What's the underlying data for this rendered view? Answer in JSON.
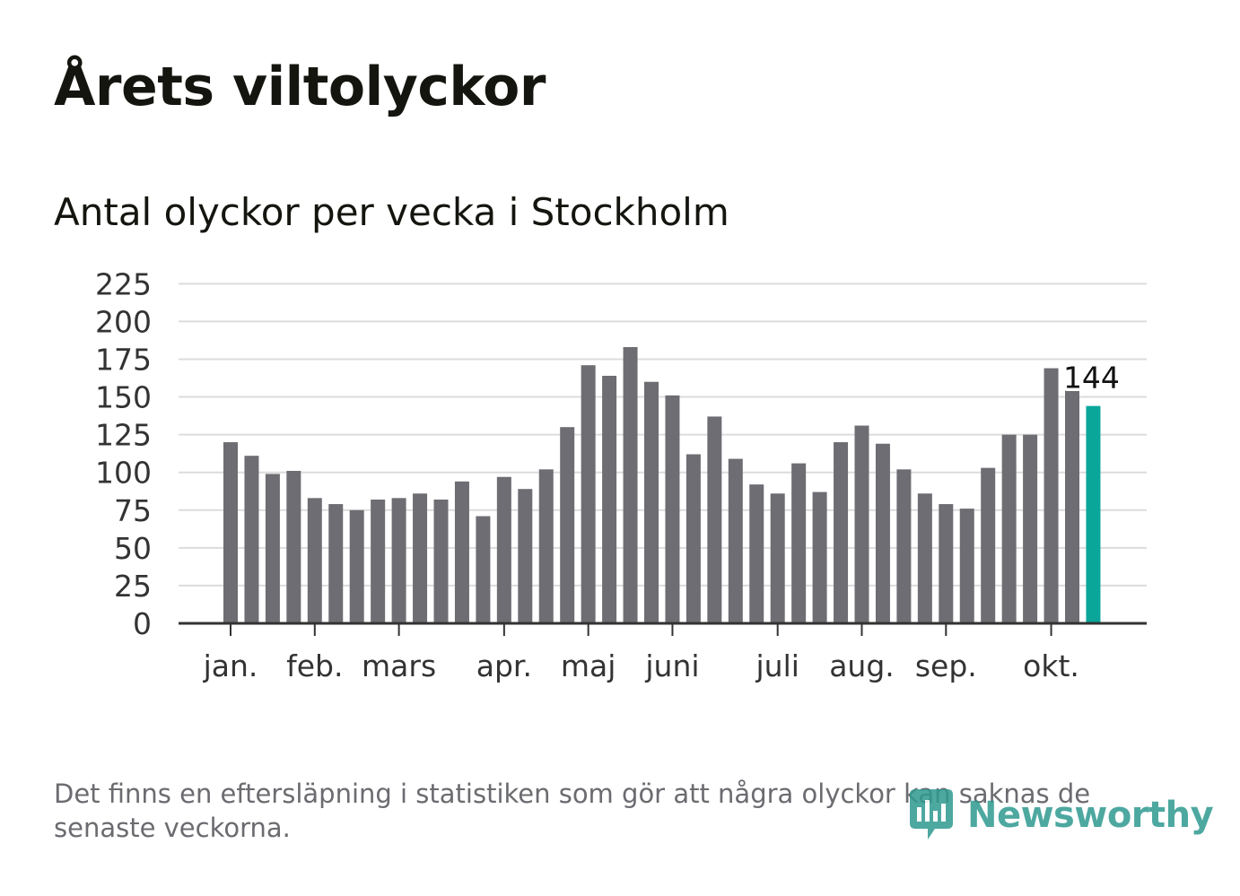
{
  "title": "Årets viltolyckor",
  "subtitle": "Antal olyckor per vecka i Stockholm",
  "footnote": "Det finns en eftersläpning i statistiken som gör att några olyckor kan saknas de senaste veckorna.",
  "logo": {
    "text": "Newsworthy",
    "icon": "newsworthy-logo-icon"
  },
  "colors": {
    "bar": "#6e6d73",
    "highlight": "#0aa69a",
    "grid": "#dcdcdc",
    "axis": "#333333"
  },
  "chart_data": {
    "type": "bar",
    "ylim": [
      0,
      225
    ],
    "yticks": [
      "0",
      "25",
      "50",
      "75",
      "100",
      "125",
      "150",
      "175",
      "200",
      "225"
    ],
    "values": [
      120,
      111,
      99,
      101,
      83,
      79,
      75,
      82,
      83,
      86,
      82,
      94,
      71,
      97,
      89,
      102,
      130,
      171,
      164,
      183,
      160,
      151,
      112,
      137,
      109,
      92,
      86,
      106,
      87,
      120,
      131,
      119,
      102,
      86,
      79,
      76,
      103,
      125,
      125,
      169,
      155,
      144
    ],
    "highlight_index": 41,
    "highlight_label": "144",
    "months": [
      {
        "label": "jan.",
        "week": 0
      },
      {
        "label": "feb.",
        "week": 4
      },
      {
        "label": "mars",
        "week": 8
      },
      {
        "label": "apr.",
        "week": 13
      },
      {
        "label": "maj",
        "week": 17
      },
      {
        "label": "juni",
        "week": 21
      },
      {
        "label": "juli",
        "week": 26
      },
      {
        "label": "aug.",
        "week": 30
      },
      {
        "label": "sep.",
        "week": 34
      },
      {
        "label": "okt.",
        "week": 39
      }
    ]
  }
}
